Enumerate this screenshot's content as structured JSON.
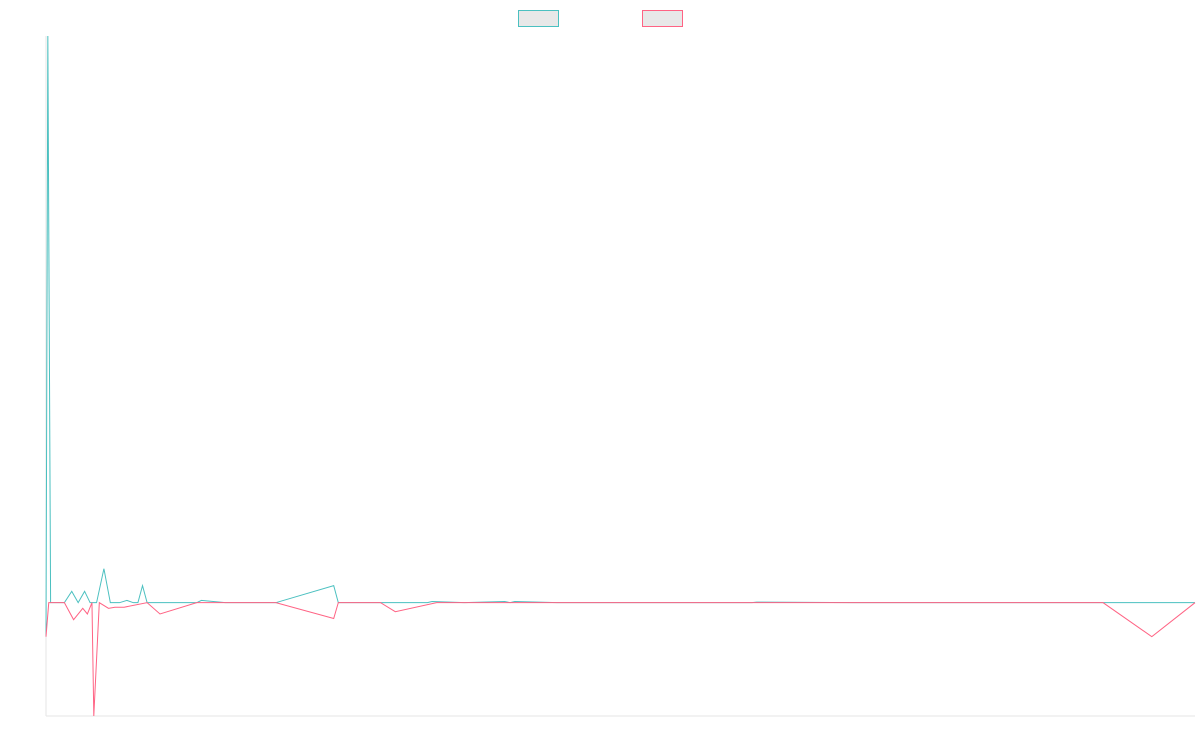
{
  "chart_data": {
    "type": "line",
    "title": "",
    "xlabel": "",
    "ylabel": "",
    "grid": false,
    "legend_placement": "top-center",
    "x_range": [
      0,
      125
    ],
    "ylim": [
      -1000,
      5000
    ],
    "x_ticks": [],
    "y_ticks": [],
    "series": [
      {
        "color": "#4bc0c0",
        "points": [
          [
            0,
            -300
          ],
          [
            0.2,
            5000
          ],
          [
            0.5,
            0
          ],
          [
            1,
            0
          ],
          [
            2,
            0
          ],
          [
            2.8,
            100
          ],
          [
            3.5,
            0
          ],
          [
            4.2,
            100
          ],
          [
            4.8,
            0
          ],
          [
            5.5,
            0
          ],
          [
            6.3,
            300
          ],
          [
            7,
            0
          ],
          [
            7.5,
            0
          ],
          [
            8,
            0
          ],
          [
            8.8,
            20
          ],
          [
            9.5,
            0
          ],
          [
            10,
            0
          ],
          [
            10.5,
            150
          ],
          [
            11,
            0
          ],
          [
            13.7,
            0
          ],
          [
            14.2,
            0
          ],
          [
            16.4,
            0
          ],
          [
            16.9,
            20
          ],
          [
            19.5,
            0
          ],
          [
            25,
            0
          ],
          [
            31.3,
            150
          ],
          [
            31.8,
            0
          ],
          [
            32.5,
            0
          ],
          [
            36.4,
            0
          ],
          [
            38.5,
            0
          ],
          [
            41.5,
            0
          ],
          [
            42,
            10
          ],
          [
            45.5,
            0
          ],
          [
            49.9,
            10
          ],
          [
            50.5,
            0
          ],
          [
            51,
            10
          ],
          [
            55.6,
            0
          ],
          [
            56.1,
            0
          ],
          [
            56.6,
            0
          ],
          [
            57,
            0
          ],
          [
            62,
            0
          ],
          [
            67,
            0
          ],
          [
            71,
            0
          ],
          [
            76.8,
            0
          ],
          [
            77.3,
            5
          ],
          [
            88,
            0
          ],
          [
            89,
            0
          ],
          [
            96,
            0
          ],
          [
            104,
            0
          ],
          [
            115,
            0
          ],
          [
            120.3,
            0
          ],
          [
            125,
            0
          ]
        ]
      },
      {
        "color": "#ff6384",
        "points": [
          [
            0,
            -300
          ],
          [
            0.3,
            0
          ],
          [
            2,
            0
          ],
          [
            3,
            -150
          ],
          [
            4,
            -50
          ],
          [
            4.5,
            -100
          ],
          [
            5,
            0
          ],
          [
            5.2,
            -1000
          ],
          [
            5.8,
            0
          ],
          [
            6.8,
            -50
          ],
          [
            7.5,
            -40
          ],
          [
            8.5,
            -40
          ],
          [
            11,
            0
          ],
          [
            12.4,
            -100
          ],
          [
            16.4,
            0
          ],
          [
            20,
            0
          ],
          [
            25,
            0
          ],
          [
            31.3,
            -140
          ],
          [
            31.8,
            0
          ],
          [
            36.4,
            0
          ],
          [
            38,
            -80
          ],
          [
            42.5,
            0
          ],
          [
            45.5,
            0
          ],
          [
            46.1,
            0
          ],
          [
            49.9,
            0
          ],
          [
            50.5,
            0
          ],
          [
            51,
            0
          ],
          [
            52.5,
            0
          ],
          [
            56.6,
            0
          ],
          [
            57,
            0
          ],
          [
            62,
            0
          ],
          [
            67,
            0
          ],
          [
            71,
            0
          ],
          [
            76.8,
            0
          ],
          [
            77.3,
            0
          ],
          [
            88,
            0
          ],
          [
            89,
            0
          ],
          [
            96,
            0
          ],
          [
            104,
            0
          ],
          [
            115,
            0
          ],
          [
            120.3,
            -300
          ],
          [
            125,
            0
          ]
        ]
      }
    ]
  }
}
